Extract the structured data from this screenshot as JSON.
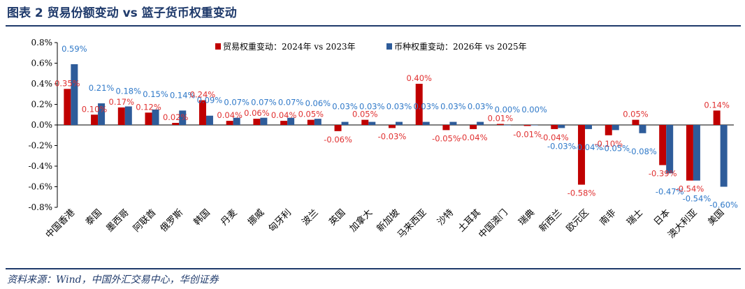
{
  "header": {
    "title": "图表 2   贸易份额变动 vs 篮子货币权重变动"
  },
  "footer": {
    "source": "资料来源：Wind，中国外汇交易中心，华创证券"
  },
  "colors": {
    "series1": "#c00000",
    "series2": "#2e5c9a",
    "label1": "#e03030",
    "label2": "#2e78c8",
    "axis": "#000000"
  },
  "chart_data": {
    "type": "bar",
    "categories": [
      "中国香港",
      "泰国",
      "墨西哥",
      "阿联酋",
      "俄罗斯",
      "韩国",
      "丹麦",
      "挪威",
      "匈牙利",
      "波兰",
      "英国",
      "加拿大",
      "新加坡",
      "马来西亚",
      "沙特",
      "土耳其",
      "中国澳门",
      "瑞典",
      "新西兰",
      "欧元区",
      "南非",
      "瑞士",
      "日本",
      "澳大利亚",
      "美国"
    ],
    "series": [
      {
        "name": "贸易权重变动：2024年 vs 2023年",
        "values": [
          0.35,
          0.1,
          0.17,
          0.12,
          0.02,
          0.24,
          0.04,
          0.06,
          0.04,
          0.05,
          -0.06,
          0.05,
          -0.03,
          0.4,
          -0.05,
          -0.04,
          0.01,
          -0.01,
          -0.04,
          -0.58,
          -0.1,
          0.05,
          -0.39,
          -0.54,
          0.14
        ],
        "labels": [
          "0.35%",
          "0.10%",
          "0.17%",
          "0.12%",
          "0.02%",
          "0.24%",
          "0.04%",
          "0.06%",
          "0.04%",
          "0.05%",
          "-0.06%",
          "0.05%",
          "-0.03%",
          "0.40%",
          "-0.05%",
          "-0.04%",
          "0.01%",
          "-0.01%",
          "-0.04%",
          "-0.58%",
          "-0.10%",
          "0.05%",
          "-0.39%",
          "-0.54%",
          "0.14%"
        ]
      },
      {
        "name": "币种权重变动：2026年 vs 2025年",
        "values": [
          0.59,
          0.21,
          0.18,
          0.15,
          0.14,
          0.09,
          0.07,
          0.07,
          0.07,
          0.06,
          0.03,
          0.03,
          0.03,
          0.03,
          0.03,
          0.03,
          0.0,
          0.0,
          -0.03,
          -0.04,
          -0.05,
          -0.08,
          -0.47,
          -0.54,
          -0.6
        ],
        "labels": [
          "0.59%",
          "0.21%",
          "0.18%",
          "0.15%",
          "0.14%",
          "0.09%",
          "0.07%",
          "0.07%",
          "0.07%",
          "0.06%",
          "0.03%",
          "0.03%",
          "0.03%",
          "0.03%",
          "0.03%",
          "0.03%",
          "0.00%",
          "0.00%",
          "-0.03%",
          "-0.04%",
          "-0.05%",
          "-0.08%",
          "-0.47%",
          "-0.54%",
          "-0.60%"
        ]
      }
    ],
    "yticks": [
      0.8,
      0.6,
      0.4,
      0.2,
      0.0,
      -0.2,
      -0.4,
      -0.6,
      -0.8
    ],
    "ytick_labels": [
      "0.8%",
      "0.6%",
      "0.4%",
      "0.2%",
      "0.0%",
      "-0.2%",
      "-0.4%",
      "-0.6%",
      "-0.8%"
    ],
    "ylim": [
      -0.8,
      0.8
    ],
    "legend": "top-center",
    "grid": false
  }
}
